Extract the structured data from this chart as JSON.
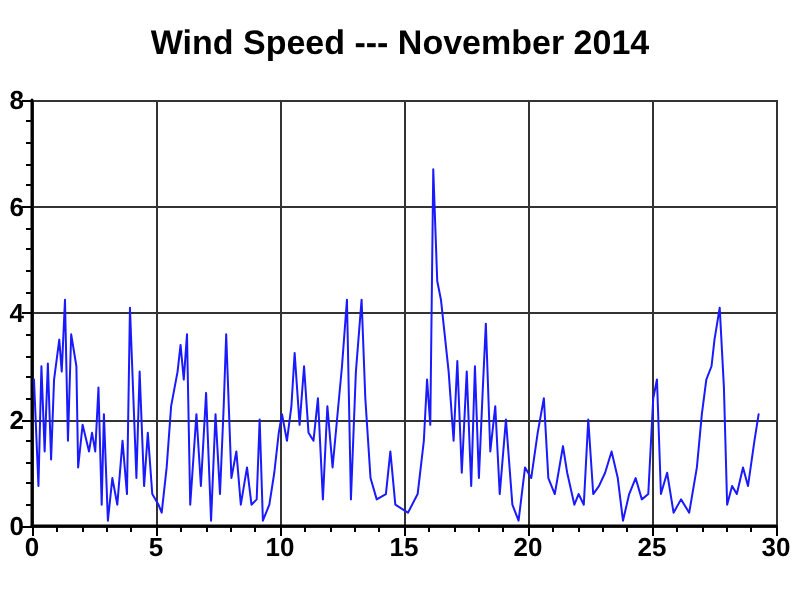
{
  "chart_data": {
    "type": "line",
    "title": "Wind Speed --- November 2014",
    "x": [
      0.08,
      0.26,
      0.38,
      0.51,
      0.64,
      0.77,
      0.89,
      1.1,
      1.2,
      1.33,
      1.45,
      1.58,
      1.79,
      1.86,
      2.04,
      2.3,
      2.42,
      2.55,
      2.68,
      2.81,
      2.9,
      3.06,
      3.24,
      3.44,
      3.65,
      3.83,
      3.95,
      4.08,
      4.21,
      4.34,
      4.52,
      4.67,
      4.85,
      5.1,
      5.23,
      5.43,
      5.61,
      5.87,
      5.99,
      6.12,
      6.25,
      6.38,
      6.63,
      6.81,
      7.02,
      7.22,
      7.4,
      7.58,
      7.73,
      7.83,
      8.04,
      8.24,
      8.42,
      8.67,
      8.85,
      9.06,
      9.18,
      9.31,
      9.57,
      9.77,
      9.95,
      10.08,
      10.28,
      10.46,
      10.59,
      10.79,
      10.97,
      11.15,
      11.35,
      11.53,
      11.73,
      11.91,
      12.12,
      12.3,
      12.5,
      12.7,
      12.86,
      13.06,
      13.29,
      13.44,
      13.65,
      13.9,
      14.27,
      14.45,
      14.65,
      15.16,
      15.55,
      15.8,
      15.93,
      16.06,
      16.18,
      16.34,
      16.49,
      16.64,
      16.8,
      17.0,
      17.15,
      17.33,
      17.53,
      17.71,
      17.86,
      18.02,
      18.17,
      18.3,
      18.48,
      18.68,
      18.86,
      19.11,
      19.37,
      19.62,
      19.88,
      20.13,
      20.39,
      20.64,
      20.82,
      21.08,
      21.41,
      21.58,
      21.87,
      22.04,
      22.25,
      22.43,
      22.63,
      22.86,
      23.11,
      23.37,
      23.62,
      23.83,
      24.08,
      24.34,
      24.59,
      24.85,
      25.05,
      25.2,
      25.36,
      25.61,
      25.87,
      26.17,
      26.5,
      26.81,
      27.01,
      27.19,
      27.4,
      27.52,
      27.73,
      27.9,
      28.03,
      28.23,
      28.42,
      28.67,
      28.87,
      29.13,
      29.3
    ],
    "series": [
      {
        "color": "#1a1aff",
        "values": [
          2.75,
          0.75,
          3.0,
          1.4,
          3.05,
          1.25,
          2.75,
          3.5,
          2.9,
          4.25,
          1.6,
          3.6,
          3.0,
          1.1,
          1.9,
          1.4,
          1.75,
          1.4,
          2.6,
          0.4,
          2.1,
          0.1,
          0.9,
          0.4,
          1.6,
          0.6,
          4.1,
          2.5,
          0.9,
          2.9,
          0.75,
          1.75,
          0.6,
          0.4,
          0.25,
          1.1,
          2.25,
          2.9,
          3.4,
          2.75,
          3.6,
          0.4,
          2.1,
          0.75,
          2.5,
          0.1,
          2.1,
          0.6,
          2.25,
          3.6,
          0.9,
          1.4,
          0.4,
          1.1,
          0.4,
          0.5,
          2.0,
          0.1,
          0.4,
          1.0,
          1.75,
          2.1,
          1.6,
          2.25,
          3.25,
          1.9,
          3.0,
          1.75,
          1.6,
          2.4,
          0.5,
          2.25,
          1.1,
          2.0,
          3.0,
          4.25,
          0.5,
          2.9,
          4.25,
          2.4,
          0.9,
          0.5,
          0.6,
          1.4,
          0.4,
          0.25,
          0.6,
          1.6,
          2.75,
          1.9,
          6.7,
          4.6,
          4.25,
          3.6,
          2.9,
          1.6,
          3.1,
          1.0,
          2.9,
          0.75,
          3.0,
          0.9,
          2.5,
          3.8,
          1.4,
          2.25,
          0.6,
          2.0,
          0.4,
          0.1,
          1.1,
          0.9,
          1.75,
          2.4,
          0.9,
          0.6,
          1.5,
          1.0,
          0.4,
          0.6,
          0.4,
          2.0,
          0.6,
          0.75,
          1.0,
          1.4,
          0.9,
          0.1,
          0.6,
          0.9,
          0.5,
          0.6,
          2.4,
          2.75,
          0.6,
          1.0,
          0.25,
          0.5,
          0.25,
          1.1,
          2.1,
          2.75,
          3.0,
          3.5,
          4.1,
          2.6,
          0.4,
          0.75,
          0.6,
          1.1,
          0.75,
          1.6,
          2.1
        ]
      }
    ],
    "xlim": [
      0,
      30
    ],
    "xticks": [
      0,
      5,
      10,
      15,
      20,
      25,
      30
    ],
    "ylim": [
      0,
      8
    ],
    "yticks": [
      0,
      2,
      4,
      6,
      8
    ],
    "grid": true,
    "marker": "none",
    "line_style": "solid"
  }
}
